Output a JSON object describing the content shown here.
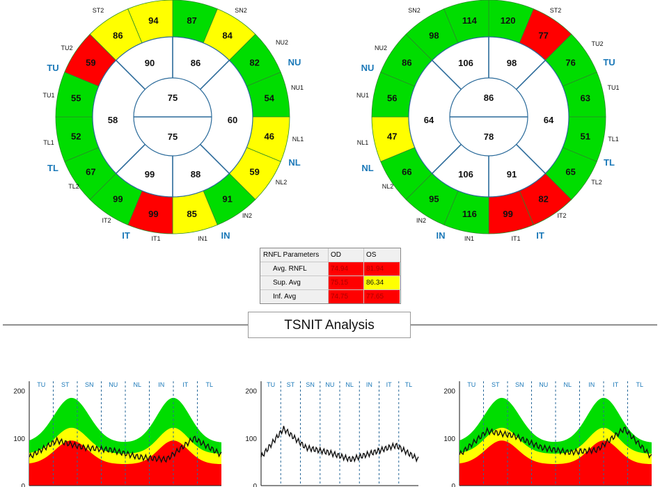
{
  "colors": {
    "green": "#00dd00",
    "yellow": "#ffff00",
    "red": "#ff0000",
    "label_blue": "#1a78b8"
  },
  "od_circle": {
    "sectors": [
      {
        "id": "ST2",
        "value": "94",
        "color": "yellow"
      },
      {
        "id": "SN2",
        "value": "87",
        "color": "green"
      },
      {
        "id": "NU2",
        "value": "84",
        "color": "yellow"
      },
      {
        "id": "NU1",
        "value": "82",
        "color": "green"
      },
      {
        "id": "NL1",
        "value": "54",
        "color": "green"
      },
      {
        "id": "NL2",
        "value": "46",
        "color": "yellow"
      },
      {
        "id": "IN2",
        "value": "59",
        "color": "yellow"
      },
      {
        "id": "IN1",
        "value": "91",
        "color": "green"
      },
      {
        "id": "IT1",
        "value": "85",
        "color": "yellow"
      },
      {
        "id": "IT2",
        "value": "99",
        "color": "red"
      },
      {
        "id": "TL2",
        "value": "99",
        "color": "green"
      },
      {
        "id": "TL1",
        "value": "67",
        "color": "green"
      },
      {
        "id": "TU1",
        "value": "52",
        "color": "green"
      },
      {
        "id": "TU2",
        "value": "55",
        "color": "green"
      },
      {
        "id": "ST1",
        "value": "59",
        "color": "red"
      },
      {
        "id": "SN1",
        "value": "86",
        "color": "yellow"
      }
    ],
    "quadrants": {
      "s1": "90",
      "s2": "86",
      "n": "60",
      "i2": "88",
      "i1": "99",
      "t": "58"
    },
    "center": {
      "top": "75",
      "bottom": "75"
    },
    "sector_labels": [
      "ST2",
      "SN2",
      "NU2",
      "NU1",
      "NL1",
      "NL2",
      "IN2",
      "IN1",
      "IT1",
      "IT2",
      "TL2",
      "TL1",
      "TU1",
      "TU2"
    ],
    "region_labels": {
      "tu": "TU",
      "tl": "TL",
      "it": "IT",
      "in": "IN",
      "nl": "NL",
      "nu": "NU"
    }
  },
  "os_circle": {
    "sectors": [
      {
        "value": "120",
        "color": "green"
      },
      {
        "value": "77",
        "color": "red"
      },
      {
        "value": "76",
        "color": "green"
      },
      {
        "value": "63",
        "color": "green"
      },
      {
        "value": "51",
        "color": "green"
      },
      {
        "value": "65",
        "color": "green"
      },
      {
        "value": "82",
        "color": "red"
      },
      {
        "value": "99",
        "color": "red"
      },
      {
        "value": "116",
        "color": "green"
      },
      {
        "value": "95",
        "color": "green"
      },
      {
        "value": "66",
        "color": "green"
      },
      {
        "value": "47",
        "color": "yellow"
      },
      {
        "value": "56",
        "color": "green"
      },
      {
        "value": "86",
        "color": "green"
      },
      {
        "value": "98",
        "color": "green"
      },
      {
        "value": "114",
        "color": "green"
      }
    ],
    "quadrants": {
      "s1": "106",
      "s2": "98",
      "n": "64",
      "i2": "91",
      "i1": "106",
      "t": "64"
    },
    "center": {
      "top": "86",
      "bottom": "78"
    },
    "sector_labels": [
      "SN2",
      "ST2",
      "TU2",
      "TU1",
      "TL1",
      "TL2",
      "IT2",
      "IT1",
      "IN1",
      "IN2",
      "NL2",
      "NL1",
      "NU1",
      "NU2"
    ],
    "region_labels": {
      "nu": "NU",
      "nl": "NL",
      "in": "IN",
      "it": "IT",
      "tl": "TL",
      "tu": "TU"
    }
  },
  "rnfl_params": {
    "header": [
      "RNFL Parameters",
      "OD",
      "OS"
    ],
    "rows": [
      {
        "label": "Avg. RNFL",
        "od": "74.94",
        "os": "81.94",
        "od_color": "red",
        "os_color": "red"
      },
      {
        "label": "Sup. Avg",
        "od": "75.15",
        "os": "86.34",
        "od_color": "red",
        "os_color": "yellow"
      },
      {
        "label": "Inf. Avg",
        "od": "74.75",
        "os": "77.65",
        "od_color": "red",
        "os_color": "red"
      }
    ]
  },
  "tsnit": {
    "title": "TSNIT Analysis"
  },
  "chart_data": [
    {
      "type": "area",
      "x_segments": [
        "TU",
        "ST",
        "SN",
        "NU",
        "NL",
        "IN",
        "IT",
        "TL"
      ],
      "ylim": [
        0,
        220
      ],
      "y_ticks": [
        0,
        100,
        200
      ],
      "series": [
        {
          "values": [
            60,
            95,
            80,
            75,
            60,
            55,
            100,
            65
          ]
        }
      ]
    },
    {
      "type": "line",
      "x_segments": [
        "TU",
        "ST",
        "SN",
        "NU",
        "NL",
        "IN",
        "IT",
        "TL"
      ],
      "ylim": [
        0,
        220
      ],
      "y_ticks": [
        0,
        100,
        200
      ],
      "series": [
        {
          "values": [
            60,
            120,
            80,
            70,
            55,
            70,
            85,
            55
          ]
        }
      ]
    },
    {
      "type": "area",
      "x_segments": [
        "TU",
        "ST",
        "SN",
        "NU",
        "NL",
        "IN",
        "IT",
        "TL"
      ],
      "ylim": [
        0,
        220
      ],
      "y_ticks": [
        0,
        100,
        200
      ],
      "series": [
        {
          "values": [
            65,
            115,
            105,
            80,
            70,
            75,
            120,
            60
          ]
        }
      ]
    }
  ]
}
